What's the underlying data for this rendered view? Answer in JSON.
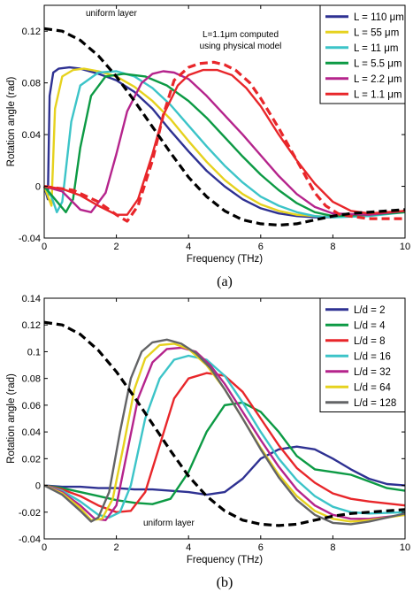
{
  "chart_data": [
    {
      "type": "line",
      "panel_label": "(a)",
      "xlabel": "Frequency (THz)",
      "ylabel": "Rotation angle (rad)",
      "xlim": [
        0,
        10
      ],
      "ylim": [
        -0.04,
        0.14
      ],
      "xticks": [
        "0",
        "2",
        "4",
        "6",
        "8",
        "10"
      ],
      "yticks": [
        "-0.04",
        "0",
        "0.04",
        "0.08",
        "0.12"
      ],
      "ytick_values": [
        -0.04,
        0,
        0.04,
        0.08,
        0.12
      ],
      "legend_position": "top-right",
      "annotations": [
        {
          "text": "uniform layer",
          "color": "#000000"
        },
        {
          "text": "L=1.1μm computed",
          "color": "#e8262a"
        },
        {
          "text": "using physical model",
          "color": "#e8262a"
        }
      ],
      "series": [
        {
          "name": "L = 110 μm",
          "color": "#2e3192",
          "dashed": false,
          "x": [
            0,
            0.1,
            0.15,
            0.25,
            0.4,
            0.7,
            1.0,
            1.5,
            2.0,
            2.5,
            3.0,
            3.5,
            4.0,
            4.5,
            5.0,
            5.5,
            6.0,
            6.5,
            7.0,
            7.5,
            8.0,
            9.0,
            10.0
          ],
          "y": [
            0,
            -0.01,
            0.07,
            0.088,
            0.091,
            0.092,
            0.091,
            0.087,
            0.082,
            0.073,
            0.06,
            0.043,
            0.027,
            0.012,
            0.0,
            -0.01,
            -0.017,
            -0.021,
            -0.023,
            -0.024,
            -0.024,
            -0.022,
            -0.019
          ]
        },
        {
          "name": "L = 55 μm",
          "color": "#e6d21e",
          "dashed": false,
          "x": [
            0,
            0.2,
            0.3,
            0.5,
            0.8,
            1.1,
            1.5,
            2.0,
            2.5,
            3.0,
            3.5,
            4.0,
            4.5,
            5.0,
            5.5,
            6.0,
            6.5,
            7.0,
            7.5,
            8.0,
            9.0,
            10.0
          ],
          "y": [
            0,
            -0.015,
            0.06,
            0.085,
            0.09,
            0.091,
            0.089,
            0.085,
            0.077,
            0.066,
            0.052,
            0.035,
            0.019,
            0.005,
            -0.006,
            -0.014,
            -0.019,
            -0.022,
            -0.023,
            -0.024,
            -0.022,
            -0.019
          ]
        },
        {
          "name": "L = 11 μm",
          "color": "#3cc4c8",
          "dashed": false,
          "x": [
            0,
            0.2,
            0.35,
            0.5,
            0.75,
            1.0,
            1.5,
            2.0,
            2.5,
            3.0,
            3.5,
            4.0,
            4.5,
            5.0,
            5.5,
            6.0,
            6.5,
            7.0,
            7.5,
            8.0,
            9.0,
            10.0
          ],
          "y": [
            0,
            -0.008,
            -0.02,
            -0.012,
            0.05,
            0.078,
            0.088,
            0.089,
            0.085,
            0.076,
            0.063,
            0.047,
            0.031,
            0.016,
            0.003,
            -0.008,
            -0.015,
            -0.02,
            -0.023,
            -0.024,
            -0.023,
            -0.02
          ]
        },
        {
          "name": "L = 5.5 μm",
          "color": "#0c9a44",
          "dashed": false,
          "x": [
            0,
            0.3,
            0.6,
            0.8,
            1.0,
            1.3,
            1.7,
            2.2,
            2.8,
            3.4,
            4.0,
            4.5,
            5.0,
            5.5,
            6.0,
            6.5,
            7.0,
            7.5,
            8.0,
            9.0,
            10.0
          ],
          "y": [
            0,
            -0.01,
            -0.02,
            -0.01,
            0.03,
            0.07,
            0.085,
            0.087,
            0.085,
            0.078,
            0.066,
            0.053,
            0.038,
            0.023,
            0.009,
            -0.003,
            -0.013,
            -0.02,
            -0.023,
            -0.022,
            -0.02
          ]
        },
        {
          "name": "L = 2.2 μm",
          "color": "#b5248c",
          "dashed": false,
          "x": [
            0,
            0.5,
            1.0,
            1.3,
            1.7,
            2.0,
            2.3,
            2.7,
            3.0,
            3.3,
            3.6,
            4.0,
            4.5,
            5.0,
            5.5,
            6.0,
            6.5,
            7.0,
            7.5,
            8.0,
            9.0,
            10.0
          ],
          "y": [
            0,
            -0.004,
            -0.018,
            -0.02,
            -0.005,
            0.025,
            0.058,
            0.08,
            0.087,
            0.089,
            0.088,
            0.083,
            0.07,
            0.055,
            0.04,
            0.024,
            0.008,
            -0.006,
            -0.016,
            -0.021,
            -0.022,
            -0.019
          ]
        },
        {
          "name": "L = 1.1 μm",
          "color": "#e8262a",
          "dashed": false,
          "x": [
            0,
            0.5,
            1.0,
            1.5,
            2.0,
            2.3,
            2.6,
            3.0,
            3.3,
            3.7,
            4.0,
            4.4,
            4.8,
            5.2,
            5.6,
            6.0,
            6.5,
            7.0,
            7.5,
            8.0,
            8.5,
            9.0,
            10.0
          ],
          "y": [
            0,
            -0.002,
            -0.007,
            -0.015,
            -0.022,
            -0.022,
            -0.01,
            0.025,
            0.055,
            0.078,
            0.086,
            0.09,
            0.09,
            0.086,
            0.076,
            0.062,
            0.04,
            0.02,
            0.002,
            -0.012,
            -0.019,
            -0.021,
            -0.019
          ]
        },
        {
          "name": "L=1.1μm computed using physical model",
          "color": "#e8262a",
          "dashed": true,
          "x": [
            0,
            0.8,
            1.5,
            2.0,
            2.3,
            2.6,
            3.0,
            3.3,
            3.6,
            4.0,
            4.3,
            4.7,
            5.0,
            5.3,
            5.7,
            6.0,
            6.5,
            7.0,
            7.5,
            7.8,
            8.2,
            9.0,
            10.0
          ],
          "y": [
            0,
            -0.003,
            -0.012,
            -0.022,
            -0.027,
            -0.015,
            0.02,
            0.055,
            0.082,
            0.092,
            0.095,
            0.096,
            0.094,
            0.09,
            0.08,
            0.068,
            0.045,
            0.02,
            -0.005,
            -0.015,
            -0.022,
            -0.025,
            -0.025
          ]
        },
        {
          "name": "uniform layer",
          "color": "#000000",
          "dashed": true,
          "x": [
            0,
            0.5,
            1.0,
            1.5,
            2.0,
            2.5,
            3.0,
            3.5,
            4.0,
            4.5,
            5.0,
            5.5,
            6.0,
            6.5,
            7.0,
            7.5,
            8.0,
            8.5,
            9.0,
            10.0
          ],
          "y": [
            0.122,
            0.12,
            0.113,
            0.101,
            0.085,
            0.066,
            0.046,
            0.026,
            0.007,
            -0.008,
            -0.019,
            -0.026,
            -0.029,
            -0.03,
            -0.029,
            -0.026,
            -0.023,
            -0.021,
            -0.02,
            -0.018
          ]
        }
      ]
    },
    {
      "type": "line",
      "panel_label": "(b)",
      "xlabel": "Frequency (THz)",
      "ylabel": "Rotation angle (rad)",
      "xlim": [
        0,
        10
      ],
      "ylim": [
        -0.04,
        0.14
      ],
      "xticks": [
        "0",
        "2",
        "4",
        "6",
        "8",
        "10"
      ],
      "yticks": [
        "-0.04",
        "-0.02",
        "0",
        "0.02",
        "0.04",
        "0.06",
        "0.08",
        "0.1",
        "0.12",
        "0.14"
      ],
      "ytick_values": [
        -0.04,
        -0.02,
        0,
        0.02,
        0.04,
        0.06,
        0.08,
        0.1,
        0.12,
        0.14
      ],
      "legend_position": "top-right",
      "annotations": [
        {
          "text": "uniform layer",
          "color": "#000000"
        }
      ],
      "series": [
        {
          "name": "L/d = 2",
          "color": "#2e3192",
          "dashed": false,
          "x": [
            0,
            0.5,
            1.0,
            1.5,
            2.0,
            2.5,
            3.0,
            3.5,
            4.0,
            4.5,
            5.0,
            5.5,
            6.0,
            6.5,
            7.0,
            7.5,
            8.0,
            8.5,
            9.0,
            9.5,
            10.0
          ],
          "y": [
            0,
            -0.001,
            -0.001,
            -0.002,
            -0.002,
            -0.003,
            -0.003,
            -0.004,
            -0.005,
            -0.007,
            -0.005,
            0.005,
            0.02,
            0.027,
            0.029,
            0.027,
            0.02,
            0.012,
            0.005,
            0.001,
            0
          ]
        },
        {
          "name": "L/d = 4",
          "color": "#0c9a44",
          "dashed": false,
          "x": [
            0,
            0.5,
            1.0,
            1.5,
            2.0,
            2.5,
            3.0,
            3.5,
            4.0,
            4.5,
            5.0,
            5.5,
            6.0,
            6.5,
            7.0,
            7.5,
            8.0,
            8.5,
            9.0,
            9.5,
            10.0
          ],
          "y": [
            0,
            -0.002,
            -0.005,
            -0.008,
            -0.011,
            -0.013,
            -0.014,
            -0.01,
            0.01,
            0.04,
            0.06,
            0.062,
            0.055,
            0.04,
            0.022,
            0.012,
            0.01,
            0.008,
            0.003,
            -0.002,
            -0.004
          ]
        },
        {
          "name": "L/d = 8",
          "color": "#e8262a",
          "dashed": false,
          "x": [
            0,
            0.5,
            1.0,
            1.5,
            2.0,
            2.4,
            2.8,
            3.2,
            3.6,
            4.0,
            4.5,
            5.0,
            5.5,
            6.0,
            6.5,
            7.0,
            7.5,
            8.0,
            8.5,
            9.0,
            10.0
          ],
          "y": [
            0,
            -0.003,
            -0.008,
            -0.015,
            -0.02,
            -0.019,
            -0.005,
            0.03,
            0.065,
            0.08,
            0.084,
            0.082,
            0.07,
            0.05,
            0.03,
            0.013,
            0.002,
            -0.006,
            -0.01,
            -0.012,
            -0.015
          ]
        },
        {
          "name": "L/d = 16",
          "color": "#3cc4c8",
          "dashed": false,
          "x": [
            0,
            0.5,
            1.0,
            1.5,
            1.8,
            2.1,
            2.4,
            2.8,
            3.2,
            3.6,
            4.0,
            4.5,
            5.0,
            5.5,
            6.0,
            6.5,
            7.0,
            7.5,
            8.0,
            8.5,
            9.0,
            10.0
          ],
          "y": [
            0,
            -0.004,
            -0.012,
            -0.022,
            -0.024,
            -0.02,
            0.0,
            0.05,
            0.08,
            0.094,
            0.097,
            0.094,
            0.082,
            0.062,
            0.04,
            0.02,
            0.004,
            -0.008,
            -0.016,
            -0.02,
            -0.021,
            -0.02
          ]
        },
        {
          "name": "L/d = 32",
          "color": "#b5248c",
          "dashed": false,
          "x": [
            0,
            0.5,
            1.0,
            1.4,
            1.7,
            2.0,
            2.3,
            2.6,
            3.0,
            3.4,
            3.8,
            4.2,
            4.6,
            5.0,
            5.5,
            6.0,
            6.5,
            7.0,
            7.5,
            8.0,
            8.5,
            9.0,
            10.0
          ],
          "y": [
            0,
            -0.005,
            -0.015,
            -0.025,
            -0.026,
            -0.015,
            0.025,
            0.065,
            0.092,
            0.102,
            0.103,
            0.1,
            0.09,
            0.076,
            0.055,
            0.034,
            0.014,
            -0.003,
            -0.015,
            -0.022,
            -0.025,
            -0.025,
            -0.022
          ]
        },
        {
          "name": "L/d = 64",
          "color": "#e6d21e",
          "dashed": false,
          "x": [
            0,
            0.5,
            1.0,
            1.3,
            1.6,
            1.9,
            2.2,
            2.5,
            2.8,
            3.2,
            3.6,
            4.0,
            4.5,
            5.0,
            5.5,
            6.0,
            6.5,
            7.0,
            7.5,
            8.0,
            8.5,
            9.0,
            10.0
          ],
          "y": [
            0,
            -0.006,
            -0.017,
            -0.026,
            -0.025,
            -0.01,
            0.03,
            0.072,
            0.095,
            0.105,
            0.106,
            0.102,
            0.09,
            0.072,
            0.05,
            0.028,
            0.008,
            -0.008,
            -0.019,
            -0.025,
            -0.027,
            -0.026,
            -0.022
          ]
        },
        {
          "name": "L/d = 128",
          "color": "#636466",
          "dashed": false,
          "x": [
            0,
            0.5,
            1.0,
            1.3,
            1.5,
            1.8,
            2.1,
            2.4,
            2.7,
            3.0,
            3.4,
            3.8,
            4.2,
            4.6,
            5.0,
            5.5,
            6.0,
            6.5,
            7.0,
            7.5,
            8.0,
            8.5,
            9.0,
            10.0
          ],
          "y": [
            0,
            -0.007,
            -0.019,
            -0.027,
            -0.024,
            -0.005,
            0.04,
            0.08,
            0.1,
            0.107,
            0.109,
            0.106,
            0.099,
            0.088,
            0.072,
            0.05,
            0.027,
            0.006,
            -0.011,
            -0.022,
            -0.028,
            -0.029,
            -0.027,
            -0.021
          ]
        },
        {
          "name": "uniform layer",
          "color": "#000000",
          "dashed": true,
          "x": [
            0,
            0.5,
            1.0,
            1.5,
            2.0,
            2.5,
            3.0,
            3.5,
            4.0,
            4.5,
            5.0,
            5.5,
            6.0,
            6.5,
            7.0,
            7.5,
            8.0,
            8.5,
            9.0,
            10.0
          ],
          "y": [
            0.122,
            0.12,
            0.113,
            0.101,
            0.085,
            0.066,
            0.046,
            0.026,
            0.007,
            -0.008,
            -0.019,
            -0.026,
            -0.029,
            -0.03,
            -0.029,
            -0.026,
            -0.023,
            -0.021,
            -0.02,
            -0.018
          ]
        }
      ]
    }
  ]
}
